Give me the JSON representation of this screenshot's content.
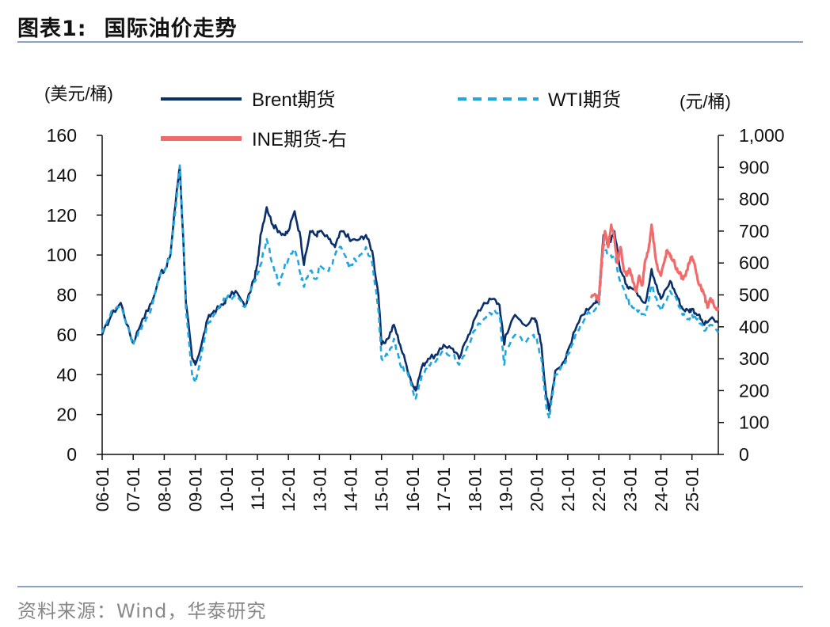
{
  "figure": {
    "label": "图表1:",
    "title": "国际油价走势",
    "source": "资料来源：Wind，华泰研究"
  },
  "chart_data": {
    "type": "line",
    "left_axis_label": "(美元/桶)",
    "right_axis_label": "(元/桶)",
    "left_ylim": [
      0,
      160
    ],
    "left_ticks": [
      0,
      20,
      40,
      60,
      80,
      100,
      120,
      140,
      160
    ],
    "left_tick_labels": [
      "0",
      "20",
      "40",
      "60",
      "80",
      "100",
      "120",
      "140",
      "160"
    ],
    "right_ylim": [
      0,
      1000
    ],
    "right_ticks": [
      0,
      100,
      200,
      300,
      400,
      500,
      600,
      700,
      800,
      900,
      1000
    ],
    "right_tick_labels": [
      "0",
      "100",
      "200",
      "300",
      "400",
      "500",
      "600",
      "700",
      "800",
      "900",
      "1,000"
    ],
    "xlim": [
      2006.0,
      2025.85
    ],
    "x_ticks": [
      2006,
      2007,
      2008,
      2009,
      2010,
      2011,
      2012,
      2013,
      2014,
      2015,
      2016,
      2017,
      2018,
      2019,
      2020,
      2021,
      2022,
      2023,
      2024,
      2025
    ],
    "x_tick_labels": [
      "06-01",
      "07-01",
      "08-01",
      "09-01",
      "10-01",
      "11-01",
      "12-01",
      "13-01",
      "14-01",
      "15-01",
      "16-01",
      "17-01",
      "18-01",
      "19-01",
      "20-01",
      "21-01",
      "22-01",
      "23-01",
      "24-01",
      "25-01"
    ],
    "series": [
      {
        "name": "Brent期货",
        "axis": "left",
        "color": "#0b2f6b",
        "style": "solid",
        "x": [
          2006.0,
          2006.3,
          2006.6,
          2006.9,
          2007.0,
          2007.3,
          2007.6,
          2007.9,
          2008.0,
          2008.2,
          2008.4,
          2008.5,
          2008.6,
          2008.7,
          2008.9,
          2009.0,
          2009.2,
          2009.4,
          2009.6,
          2009.9,
          2010.0,
          2010.3,
          2010.6,
          2010.9,
          2011.0,
          2011.1,
          2011.3,
          2011.5,
          2011.7,
          2011.9,
          2012.0,
          2012.2,
          2012.4,
          2012.5,
          2012.7,
          2012.9,
          2013.0,
          2013.3,
          2013.5,
          2013.7,
          2013.9,
          2014.0,
          2014.3,
          2014.5,
          2014.7,
          2014.9,
          2015.0,
          2015.2,
          2015.4,
          2015.6,
          2015.8,
          2016.0,
          2016.1,
          2016.3,
          2016.5,
          2016.8,
          2017.0,
          2017.3,
          2017.5,
          2017.8,
          2018.0,
          2018.3,
          2018.6,
          2018.8,
          2018.95,
          2019.0,
          2019.3,
          2019.6,
          2019.9,
          2020.0,
          2020.15,
          2020.3,
          2020.4,
          2020.6,
          2020.9,
          2021.0,
          2021.3,
          2021.6,
          2021.9,
          2022.0,
          2022.15,
          2022.3,
          2022.5,
          2022.7,
          2022.9,
          2023.0,
          2023.2,
          2023.5,
          2023.7,
          2023.9,
          2024.0,
          2024.3,
          2024.5,
          2024.7,
          2024.9,
          2025.0,
          2025.2,
          2025.4,
          2025.6,
          2025.85
        ],
        "values": [
          60,
          70,
          76,
          60,
          56,
          68,
          76,
          92,
          92,
          100,
          132,
          144,
          112,
          76,
          48,
          45,
          55,
          68,
          72,
          75,
          78,
          82,
          74,
          88,
          95,
          110,
          124,
          115,
          112,
          110,
          112,
          122,
          108,
          95,
          112,
          110,
          112,
          108,
          104,
          112,
          110,
          107,
          108,
          110,
          102,
          80,
          55,
          58,
          65,
          55,
          45,
          35,
          32,
          44,
          48,
          50,
          55,
          53,
          48,
          60,
          68,
          76,
          78,
          75,
          55,
          60,
          70,
          65,
          68,
          66,
          55,
          30,
          22,
          42,
          47,
          52,
          65,
          73,
          76,
          78,
          110,
          105,
          112,
          92,
          85,
          84,
          82,
          76,
          93,
          82,
          78,
          87,
          80,
          73,
          72,
          73,
          70,
          65,
          68,
          66
        ]
      },
      {
        "name": "WTI期货",
        "axis": "left",
        "color": "#1ea7e1",
        "style": "dashed",
        "x": [
          2006.0,
          2006.3,
          2006.6,
          2006.9,
          2007.0,
          2007.3,
          2007.6,
          2007.9,
          2008.0,
          2008.2,
          2008.4,
          2008.5,
          2008.6,
          2008.7,
          2008.9,
          2009.0,
          2009.2,
          2009.4,
          2009.6,
          2009.9,
          2010.0,
          2010.3,
          2010.6,
          2010.9,
          2011.0,
          2011.1,
          2011.3,
          2011.5,
          2011.7,
          2011.9,
          2012.0,
          2012.2,
          2012.4,
          2012.5,
          2012.7,
          2012.9,
          2013.0,
          2013.3,
          2013.5,
          2013.7,
          2013.9,
          2014.0,
          2014.3,
          2014.5,
          2014.7,
          2014.9,
          2015.0,
          2015.2,
          2015.4,
          2015.6,
          2015.8,
          2016.0,
          2016.1,
          2016.3,
          2016.5,
          2016.8,
          2017.0,
          2017.3,
          2017.5,
          2017.8,
          2018.0,
          2018.3,
          2018.6,
          2018.8,
          2018.95,
          2019.0,
          2019.3,
          2019.6,
          2019.9,
          2020.0,
          2020.15,
          2020.3,
          2020.4,
          2020.6,
          2020.9,
          2021.0,
          2021.3,
          2021.6,
          2021.9,
          2022.0,
          2022.15,
          2022.3,
          2022.5,
          2022.7,
          2022.9,
          2023.0,
          2023.2,
          2023.5,
          2023.7,
          2023.9,
          2024.0,
          2024.3,
          2024.5,
          2024.7,
          2024.9,
          2025.0,
          2025.2,
          2025.4,
          2025.6,
          2025.85
        ],
        "values": [
          61,
          72,
          74,
          61,
          55,
          65,
          74,
          92,
          92,
          100,
          128,
          145,
          114,
          72,
          40,
          36,
          50,
          65,
          70,
          77,
          78,
          80,
          74,
          86,
          90,
          95,
          108,
          95,
          85,
          96,
          98,
          103,
          90,
          84,
          92,
          88,
          95,
          92,
          100,
          104,
          96,
          95,
          100,
          104,
          96,
          72,
          48,
          50,
          58,
          45,
          42,
          32,
          28,
          40,
          45,
          48,
          52,
          50,
          45,
          55,
          62,
          68,
          72,
          70,
          45,
          52,
          60,
          56,
          60,
          58,
          48,
          25,
          18,
          40,
          45,
          50,
          62,
          70,
          73,
          75,
          105,
          100,
          100,
          86,
          78,
          76,
          73,
          70,
          85,
          75,
          72,
          82,
          78,
          70,
          68,
          70,
          68,
          62,
          65,
          61
        ]
      },
      {
        "name": "INE期货-右",
        "axis": "right",
        "color": "#f26b6b",
        "style": "solid",
        "x": [
          2021.75,
          2021.9,
          2022.0,
          2022.1,
          2022.2,
          2022.3,
          2022.4,
          2022.5,
          2022.6,
          2022.7,
          2022.8,
          2022.9,
          2023.0,
          2023.1,
          2023.2,
          2023.3,
          2023.4,
          2023.5,
          2023.6,
          2023.7,
          2023.8,
          2023.9,
          2024.0,
          2024.1,
          2024.2,
          2024.3,
          2024.4,
          2024.5,
          2024.6,
          2024.7,
          2024.8,
          2024.9,
          2025.0,
          2025.1,
          2025.2,
          2025.3,
          2025.4,
          2025.5,
          2025.6,
          2025.7,
          2025.85
        ],
        "values": [
          490,
          500,
          480,
          620,
          700,
          650,
          720,
          680,
          600,
          650,
          580,
          560,
          580,
          540,
          510,
          560,
          530,
          610,
          640,
          720,
          640,
          580,
          560,
          600,
          640,
          620,
          610,
          580,
          570,
          550,
          560,
          600,
          620,
          590,
          540,
          520,
          500,
          460,
          490,
          470,
          450
        ]
      }
    ]
  }
}
